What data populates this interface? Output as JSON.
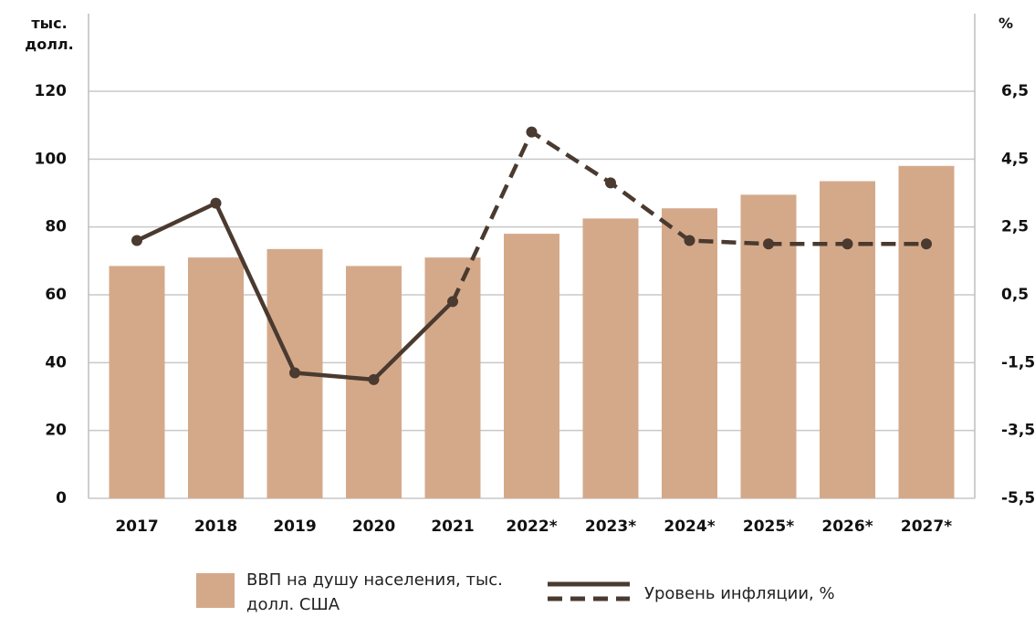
{
  "chart_data": {
    "type": "bar-line",
    "y_label": "тыс. долл.",
    "y2_label": "%",
    "categories": [
      "2017",
      "2018",
      "2019",
      "2020",
      "2021",
      "2022*",
      "2023*",
      "2024*",
      "2025*",
      "2026*",
      "2027*"
    ],
    "series": [
      {
        "name": "ВВП на душу населения, тыс. долл. США",
        "type": "bar",
        "color": "#d4a98a",
        "values": [
          68.5,
          71,
          73.5,
          68.5,
          71,
          78,
          82.5,
          85.5,
          89.5,
          93.5,
          98
        ]
      },
      {
        "name": "Уровень инфляции, %",
        "type": "line",
        "axis": "y2",
        "color": "#4a3a2f",
        "dashed_from": "2021",
        "values": [
          2.1,
          3.2,
          -1.8,
          -2.0,
          0.3,
          5.3,
          3.8,
          2.1,
          2.0,
          2.0,
          2.0
        ]
      }
    ],
    "ylim": [
      0,
      120
    ],
    "yticks": [
      0,
      20,
      40,
      60,
      80,
      100,
      120
    ],
    "y2lim": [
      -5.5,
      6.5
    ],
    "y2ticks": [
      {
        "value": -5.5,
        "label": "-5,5"
      },
      {
        "value": -3.5,
        "label": "-3,5"
      },
      {
        "value": -1.5,
        "label": "-1,5"
      },
      {
        "value": 0.5,
        "label": "0,5"
      },
      {
        "value": 2.5,
        "label": "2,5"
      },
      {
        "value": 4.5,
        "label": "4,5"
      },
      {
        "value": 6.5,
        "label": "6,5"
      }
    ],
    "grid": true
  }
}
